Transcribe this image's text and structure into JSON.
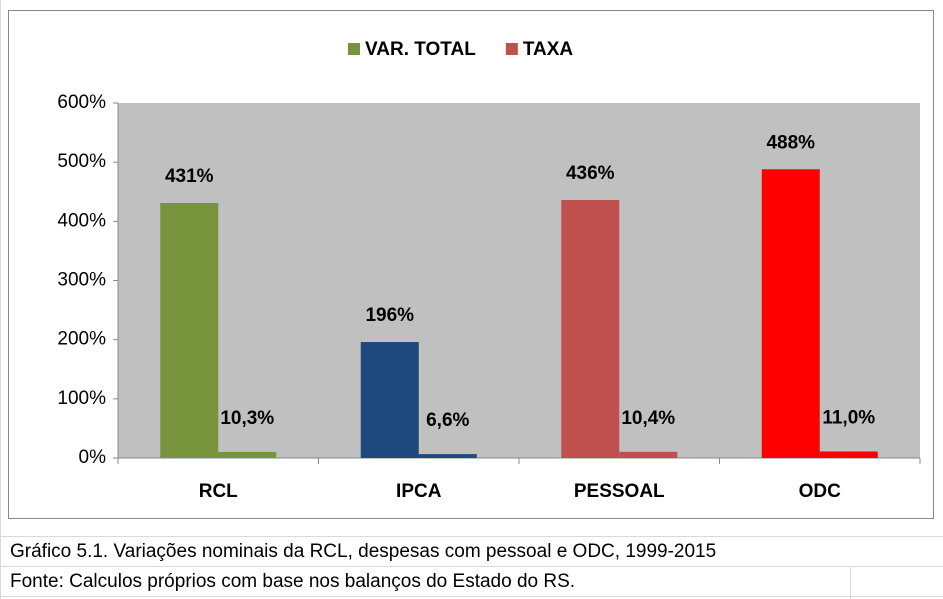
{
  "chart_data": {
    "type": "bar",
    "categories": [
      "RCL",
      "IPCA",
      "PESSOAL",
      "ODC"
    ],
    "series": [
      {
        "name": "VAR. TOTAL",
        "color": "#77933c",
        "colors": [
          "#77933c",
          "#1f497d",
          "#c0504d",
          "#ff0000"
        ],
        "values": [
          431,
          196,
          436,
          488
        ],
        "value_labels": [
          "431%",
          "196%",
          "436%",
          "488%"
        ]
      },
      {
        "name": "TAXA",
        "color": "#c0504d",
        "colors": [
          "#77933c",
          "#1f497d",
          "#c0504d",
          "#ff0000"
        ],
        "values": [
          10.3,
          6.6,
          10.4,
          11.0
        ],
        "value_labels": [
          "10,3%",
          "6,6%",
          "10,4%",
          "11,0%"
        ]
      }
    ],
    "ylim": [
      0,
      600
    ],
    "yticks": [
      {
        "value": 0,
        "label": "0%"
      },
      {
        "value": 100,
        "label": "100%"
      },
      {
        "value": 200,
        "label": "200%"
      },
      {
        "value": 300,
        "label": "300%"
      },
      {
        "value": 400,
        "label": "400%"
      },
      {
        "value": 500,
        "label": "500%"
      },
      {
        "value": 600,
        "label": "600%"
      }
    ],
    "grid": false,
    "legend": "top",
    "plot_background": "#c0c0c0"
  },
  "caption": [
    "Gráfico 5.1. Variações nominais da RCL, despesas com pessoal e ODC, 1999-2015",
    "Fonte: Calculos próprios com base nos balanços do Estado do RS."
  ]
}
